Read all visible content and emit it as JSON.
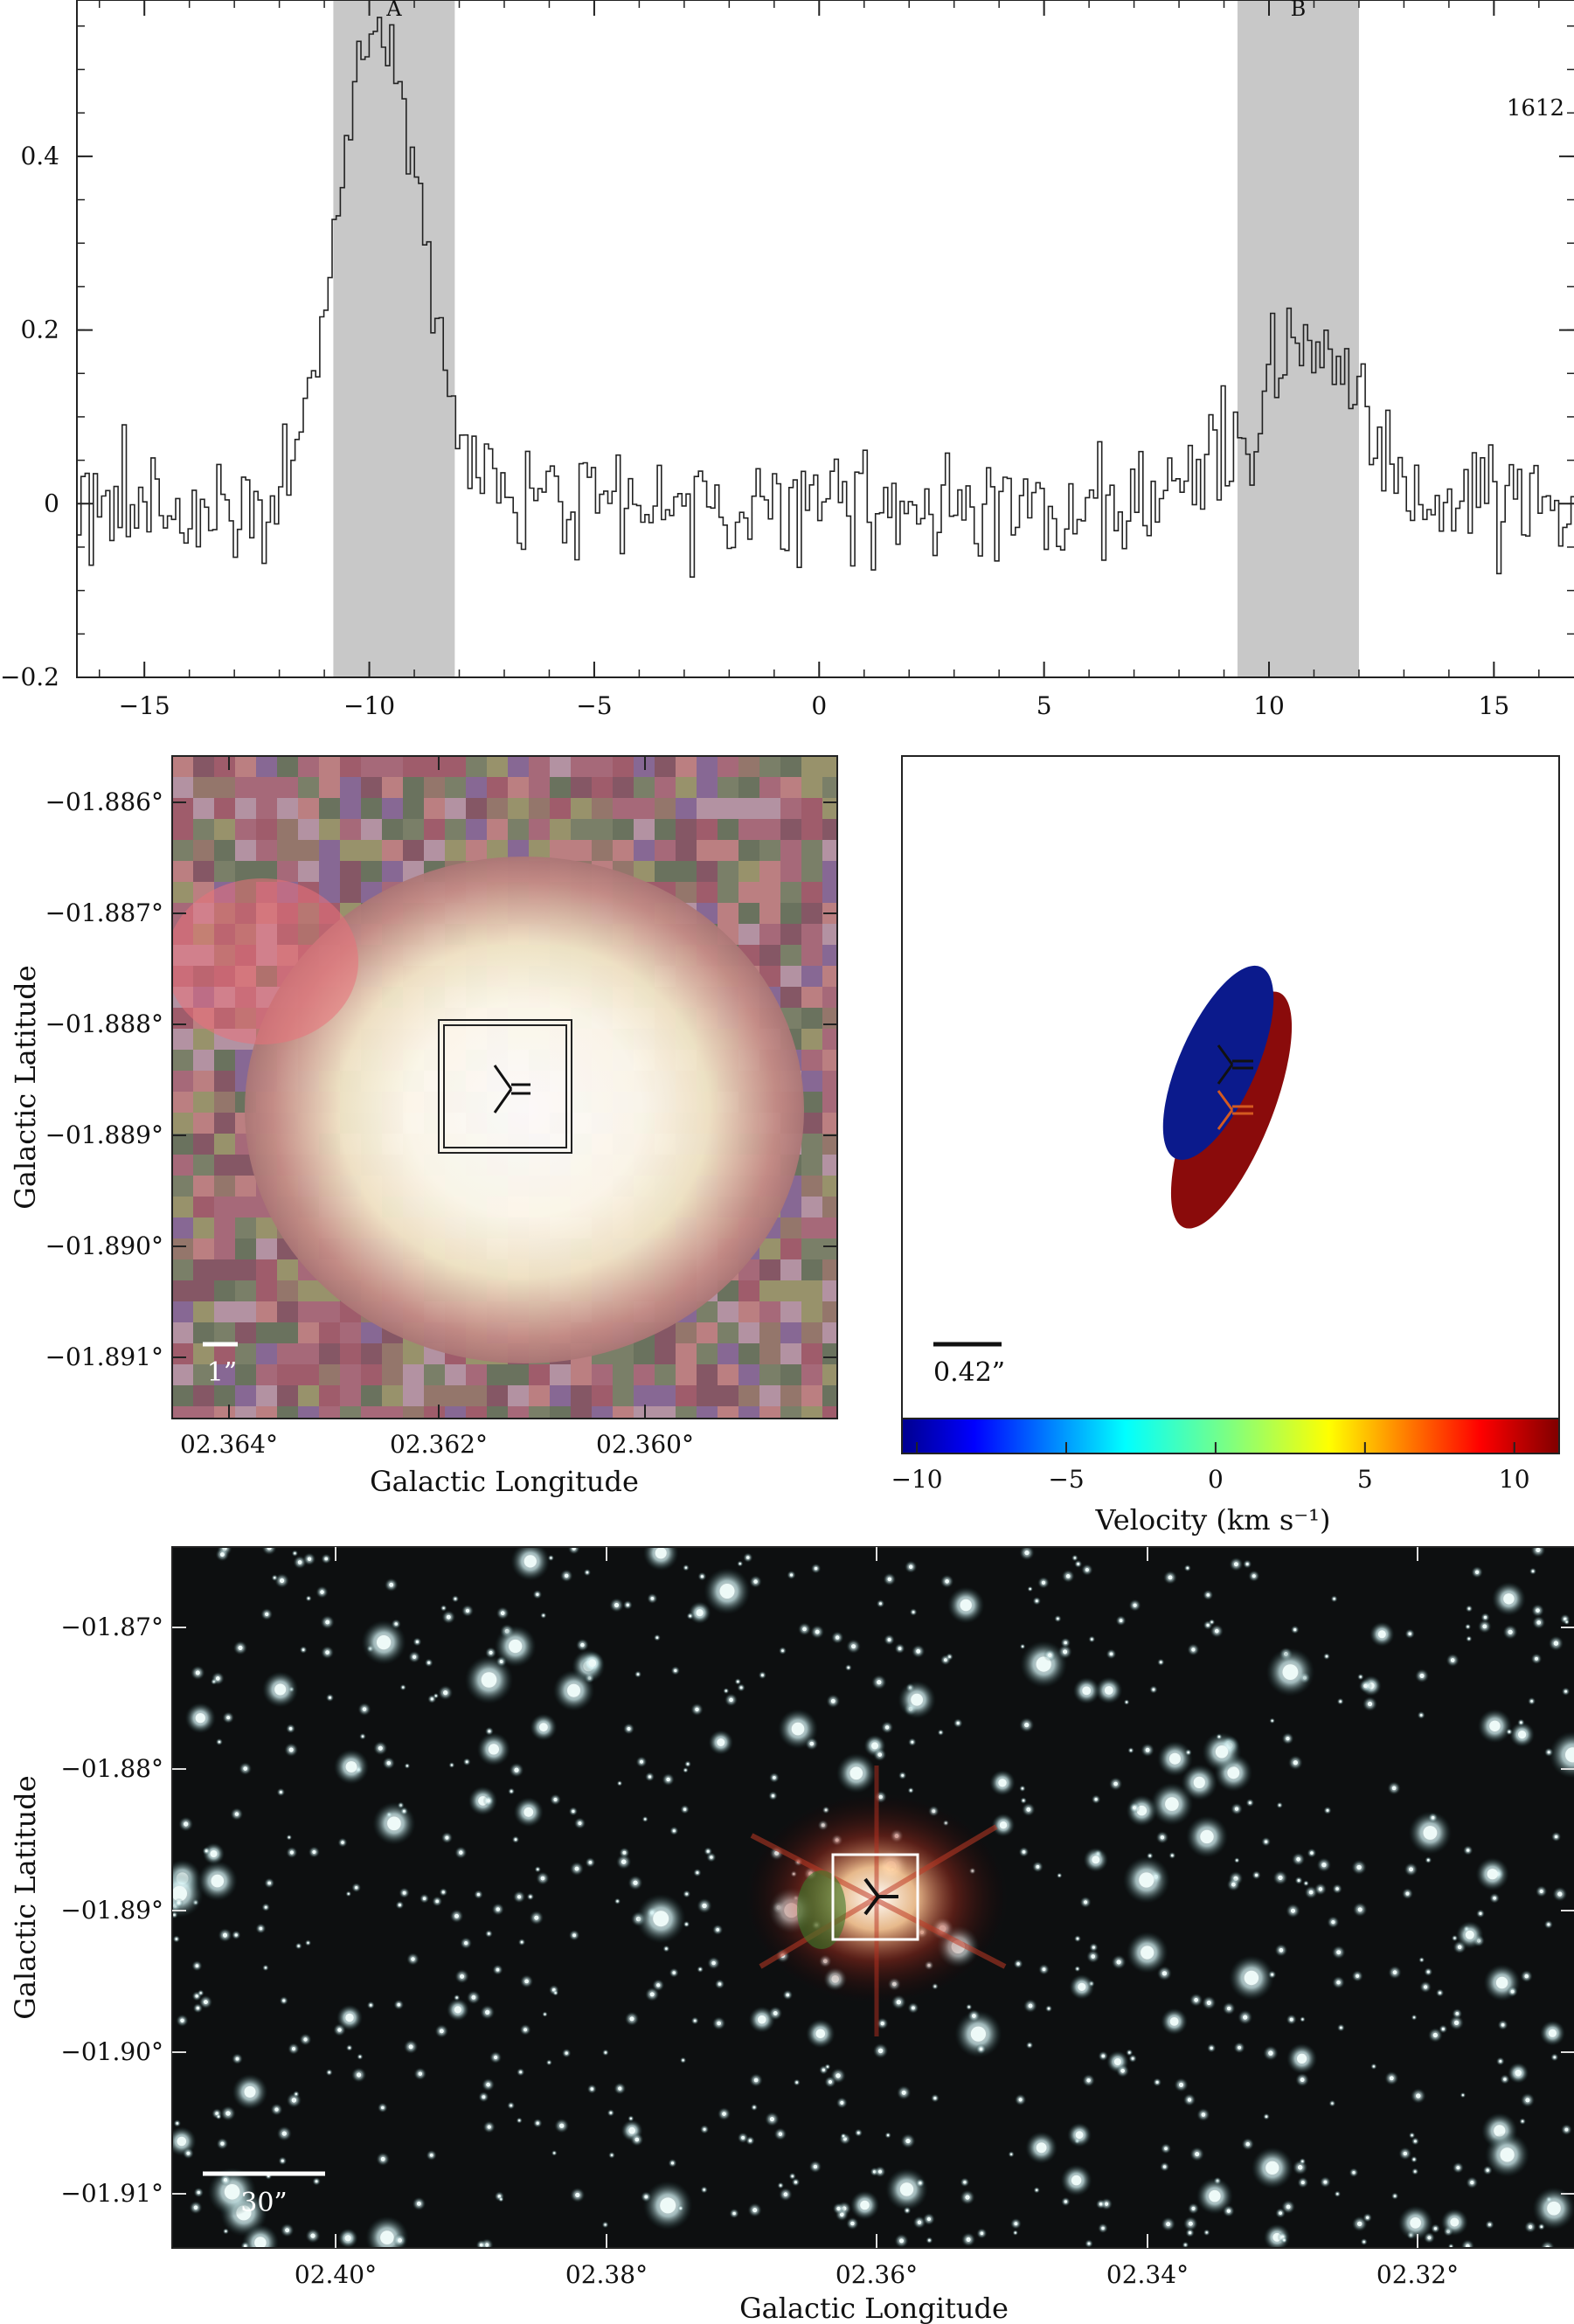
{
  "figure": {
    "spectrum": {
      "label_1612": "1612",
      "region_labels": [
        "A",
        "B"
      ]
    },
    "panel_mid_left": {
      "ylabel": "Galactic Latitude",
      "xlabel": "Galactic Longitude",
      "scalebar_label": "1”",
      "yticks": [
        "−01.886°",
        "−01.887°",
        "−01.888°",
        "−01.889°",
        "−01.890°",
        "−01.891°"
      ],
      "xticks": [
        "02.364°",
        "02.362°",
        "02.360°"
      ]
    },
    "panel_mid_right": {
      "scalebar_label": "0.42”",
      "colorbar_label": "Velocity (km s⁻¹)",
      "colorbar_ticks": [
        "−10",
        "−5",
        "0",
        "5",
        "10"
      ],
      "colors": {
        "blue_spot": "#0b1a8c",
        "red_spot": "#8a0b0b"
      }
    },
    "panel_bottom": {
      "ylabel": "Galactic Latitude",
      "xlabel": "Galactic Longitude",
      "scalebar_label": "30”",
      "yticks": [
        "−01.87°",
        "−01.88°",
        "−01.89°",
        "−01.90°",
        "−01.91°"
      ],
      "xticks": [
        "02.40°",
        "02.38°",
        "02.36°",
        "02.34°",
        "02.32°"
      ]
    }
  },
  "chart_data": {
    "type": "line",
    "title": "",
    "xlabel": "",
    "ylabel": "",
    "xlim": [
      -16.5,
      16.8
    ],
    "ylim": [
      -0.2,
      0.58
    ],
    "xticks": [
      -15,
      -10,
      -5,
      0,
      5,
      10,
      15
    ],
    "yticks": [
      -0.2,
      0,
      0.2,
      0.4
    ],
    "shaded_regions": [
      {
        "label": "A",
        "x": [
          -10.8,
          -8.1
        ]
      },
      {
        "label": "B",
        "x": [
          9.3,
          12.0
        ]
      }
    ],
    "features": [
      {
        "name": "A",
        "center": -9.8,
        "peak": 0.55,
        "width": 0.9
      },
      {
        "name": "B",
        "center": 10.9,
        "peak": 0.19,
        "width": 1.1
      }
    ]
  }
}
